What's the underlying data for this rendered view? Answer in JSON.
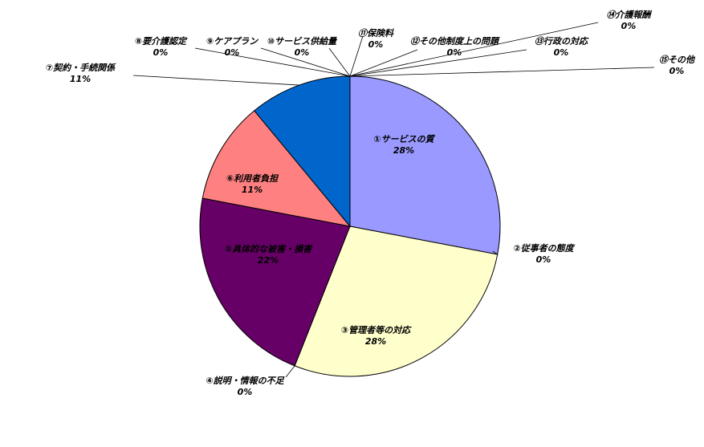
{
  "chart_data": {
    "type": "pie",
    "title": "",
    "start_angle_deg": 0,
    "direction": "clockwise",
    "slices": [
      {
        "label": "①サービスの質",
        "value": 28,
        "display": "28%",
        "color": "#9999ff"
      },
      {
        "label": "②従事者の態度",
        "value": 0,
        "display": "0%",
        "color": "#993366"
      },
      {
        "label": "③管理者等の対応",
        "value": 28,
        "display": "28%",
        "color": "#ffffcc"
      },
      {
        "label": "④説明・情報の不足",
        "value": 0,
        "display": "0%",
        "color": "#ccffff"
      },
      {
        "label": "⑤具体的な被害・損害",
        "value": 22,
        "display": "22%",
        "color": "#660066"
      },
      {
        "label": "⑥利用者負担",
        "value": 11,
        "display": "11%",
        "color": "#ff8080"
      },
      {
        "label": "⑦契約・手続関係",
        "value": 11,
        "display": "11%",
        "color": "#0066cc"
      },
      {
        "label": "⑧要介護認定",
        "value": 0,
        "display": "0%",
        "color": "#ccccff"
      },
      {
        "label": "⑨ケアプラン",
        "value": 0,
        "display": "0%",
        "color": "#000080"
      },
      {
        "label": "⑩サービス供給量",
        "value": 0,
        "display": "0%",
        "color": "#ff00ff"
      },
      {
        "label": "⑪保険料",
        "value": 0,
        "display": "0%",
        "color": "#ffff00"
      },
      {
        "label": "⑫その他制度上の問題",
        "value": 0,
        "display": "0%",
        "color": "#00ffff"
      },
      {
        "label": "⑬行政の対応",
        "value": 0,
        "display": "0%",
        "color": "#800080"
      },
      {
        "label": "⑭介護報酬",
        "value": 0,
        "display": "0%",
        "color": "#800000"
      },
      {
        "label": "⑮その他",
        "value": 0,
        "display": "0%",
        "color": "#008080"
      }
    ]
  }
}
